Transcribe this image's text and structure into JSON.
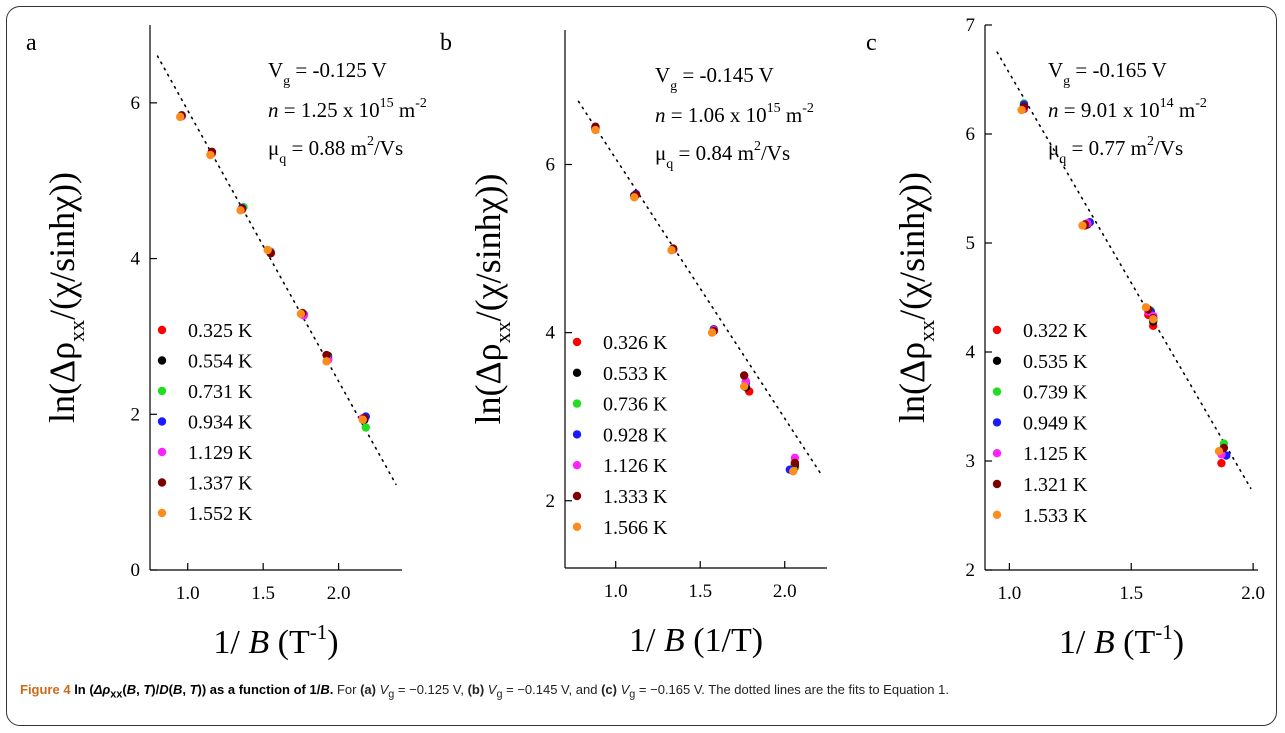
{
  "chart_data": [
    {
      "type": "scatter",
      "panel_label": "a",
      "xlabel_prefix": "1/ ",
      "xlabel_var": "B",
      "xlabel_unit": "(T",
      "xlabel_sup": "-1",
      "xlabel_close": ")",
      "ylabel": "ln(Δρ",
      "ylabel_sub": "xx",
      "ylabel_rest": "/(χ/sinhχ))",
      "xlim": [
        0.75,
        2.42
      ],
      "ylim": [
        0,
        7.0
      ],
      "xticks": [
        1.0,
        1.5,
        2.0
      ],
      "xtick_labels": [
        "1.0",
        "1.5",
        "2.0"
      ],
      "yticks": [
        0,
        2,
        4,
        6
      ],
      "ytick_labels": [
        "0",
        "2",
        "4",
        "6"
      ],
      "annotation": {
        "vg_sym": "V",
        "vg_sub": "g",
        "vg_val": " = -0.125 V",
        "n_sym": "n",
        "n_val": " = 1.25 x 10",
        "n_exp": "15",
        "n_unit": " m",
        "n_unit_exp": "-2",
        "mu_sym": "μ",
        "mu_sub": "q",
        "mu_val": " = 0.88 m",
        "mu_exp": "2",
        "mu_unit": "/Vs"
      },
      "fit": {
        "style": "dotted",
        "x": [
          0.8,
          2.38
        ],
        "y": [
          6.6,
          1.1
        ]
      },
      "series": [
        {
          "name": "0.325 K",
          "color": "#ff0000",
          "x": [
            0.96,
            1.16,
            1.36,
            1.55,
            1.76,
            1.93,
            2.17
          ],
          "y": [
            5.83,
            5.35,
            4.63,
            4.07,
            3.28,
            2.7,
            1.93
          ]
        },
        {
          "name": "0.554 K",
          "color": "#000000",
          "x": [
            0.96,
            1.16,
            1.36,
            1.55,
            1.76,
            1.93,
            2.17
          ],
          "y": [
            5.83,
            5.36,
            4.64,
            4.07,
            3.29,
            2.75,
            1.93
          ]
        },
        {
          "name": "0.731 K",
          "color": "#22dd22",
          "x": [
            0.96,
            1.16,
            1.37,
            1.55,
            1.76,
            1.93,
            2.18
          ],
          "y": [
            5.84,
            5.37,
            4.66,
            4.09,
            3.3,
            2.73,
            1.83
          ]
        },
        {
          "name": "0.934 K",
          "color": "#1a1aff",
          "x": [
            0.96,
            1.16,
            1.36,
            1.55,
            1.77,
            1.93,
            2.18
          ],
          "y": [
            5.83,
            5.37,
            4.65,
            4.08,
            3.28,
            2.72,
            1.97
          ]
        },
        {
          "name": "1.129 K",
          "color": "#ff22ff",
          "x": [
            0.96,
            1.16,
            1.36,
            1.55,
            1.77,
            1.93,
            2.16
          ],
          "y": [
            5.83,
            5.36,
            4.64,
            4.08,
            3.27,
            2.7,
            1.95
          ]
        },
        {
          "name": "1.337 K",
          "color": "#800000",
          "x": [
            0.96,
            1.16,
            1.36,
            1.55,
            1.76,
            1.92,
            2.17
          ],
          "y": [
            5.84,
            5.37,
            4.64,
            4.07,
            3.3,
            2.76,
            1.95
          ]
        },
        {
          "name": "1.552 K",
          "color": "#ff8c1a",
          "x": [
            0.95,
            1.15,
            1.35,
            1.53,
            1.75,
            1.92,
            2.16
          ],
          "y": [
            5.82,
            5.33,
            4.62,
            4.11,
            3.29,
            2.68,
            1.93
          ]
        }
      ]
    },
    {
      "type": "scatter",
      "panel_label": "b",
      "xlabel_prefix": "1/ ",
      "xlabel_var": "B",
      "xlabel_unit": "(1/T)",
      "xlabel_sup": "",
      "xlabel_close": "",
      "ylabel": "ln(Δρ",
      "ylabel_sub": "xx",
      "ylabel_rest": "/(χ/sinhχ))",
      "xlim": [
        0.7,
        2.25
      ],
      "ylim": [
        1.2,
        7.6
      ],
      "xticks": [
        1.0,
        1.5,
        2.0
      ],
      "xtick_labels": [
        "1.0",
        "1.5",
        "2.0"
      ],
      "yticks": [
        2,
        4,
        6
      ],
      "ytick_labels": [
        "2",
        "4",
        "6"
      ],
      "annotation": {
        "vg_sym": "V",
        "vg_sub": "g",
        "vg_val": " = -0.145 V",
        "n_sym": "n",
        "n_val": " = 1.06 x 10",
        "n_exp": "15",
        "n_unit": " m",
        "n_unit_exp": "-2",
        "mu_sym": "μ",
        "mu_sub": "q",
        "mu_val": " = 0.84 m",
        "mu_exp": "2",
        "mu_unit": "/Vs"
      },
      "fit": {
        "style": "dotted",
        "x": [
          0.78,
          2.22
        ],
        "y": [
          6.75,
          2.3
        ]
      },
      "series": [
        {
          "name": "0.326 K",
          "color": "#ff0000",
          "x": [
            0.88,
            1.11,
            1.34,
            1.58,
            1.79,
            2.06
          ],
          "y": [
            6.42,
            5.62,
            4.99,
            4.02,
            3.3,
            2.4
          ]
        },
        {
          "name": "0.533 K",
          "color": "#000000",
          "x": [
            0.88,
            1.11,
            1.34,
            1.58,
            1.77,
            2.06
          ],
          "y": [
            6.43,
            5.63,
            4.99,
            4.03,
            3.35,
            2.43
          ]
        },
        {
          "name": "0.736 K",
          "color": "#22dd22",
          "x": [
            0.88,
            1.12,
            1.34,
            1.58,
            1.77,
            2.05
          ],
          "y": [
            6.44,
            5.64,
            5.0,
            4.04,
            3.42,
            2.38
          ]
        },
        {
          "name": "0.928 K",
          "color": "#1a1aff",
          "x": [
            0.88,
            1.12,
            1.34,
            1.58,
            1.77,
            2.03
          ],
          "y": [
            6.43,
            5.65,
            4.99,
            4.04,
            3.4,
            2.37
          ]
        },
        {
          "name": "1.126 K",
          "color": "#ff22ff",
          "x": [
            0.88,
            1.12,
            1.34,
            1.58,
            1.77,
            2.06
          ],
          "y": [
            6.43,
            5.64,
            4.99,
            4.03,
            3.42,
            2.51
          ]
        },
        {
          "name": "1.333 K",
          "color": "#800000",
          "x": [
            0.88,
            1.12,
            1.34,
            1.58,
            1.76,
            2.06
          ],
          "y": [
            6.45,
            5.64,
            5.0,
            4.02,
            3.49,
            2.45
          ]
        },
        {
          "name": "1.566 K",
          "color": "#ff8c1a",
          "x": [
            0.88,
            1.11,
            1.33,
            1.57,
            1.76,
            2.05
          ],
          "y": [
            6.41,
            5.61,
            4.98,
            4.0,
            3.36,
            2.35
          ]
        }
      ]
    },
    {
      "type": "scatter",
      "panel_label": "c",
      "xlabel_prefix": "1/ ",
      "xlabel_var": "B",
      "xlabel_unit": "(T",
      "xlabel_sup": "-1",
      "xlabel_close": ")",
      "ylabel": "ln(Δρ",
      "ylabel_sub": "xx",
      "ylabel_rest": "/(χ/sinhχ))",
      "xlim": [
        0.9,
        2.02
      ],
      "ylim": [
        2,
        7
      ],
      "xticks": [
        1.0,
        1.5,
        2.0
      ],
      "xtick_labels": [
        "1.0",
        "1.5",
        "2.0"
      ],
      "yticks": [
        2,
        3,
        4,
        5,
        6,
        7
      ],
      "ytick_labels": [
        "2",
        "3",
        "4",
        "5",
        "6",
        "7"
      ],
      "annotation": {
        "vg_sym": "V",
        "vg_sub": "g",
        "vg_val": " = -0.165 V",
        "n_sym": "n",
        "n_val": " = 9.01 x 10",
        "n_exp": "14",
        "n_unit": " m",
        "n_unit_exp": "-2",
        "mu_sym": "μ",
        "mu_sub": "q",
        "mu_val": " = 0.77 m",
        "mu_exp": "2",
        "mu_unit": "/Vs"
      },
      "fit": {
        "style": "dotted",
        "x": [
          0.95,
          1.99
        ],
        "y": [
          6.75,
          2.75
        ]
      },
      "series": [
        {
          "name": "0.322 K",
          "color": "#ff0000",
          "x": [
            1.06,
            1.31,
            1.57,
            1.59,
            1.87
          ],
          "y": [
            6.23,
            5.16,
            4.34,
            4.24,
            2.98
          ]
        },
        {
          "name": "0.535 K",
          "color": "#000000",
          "x": [
            1.06,
            1.32,
            1.58,
            1.59,
            1.87
          ],
          "y": [
            6.26,
            5.17,
            4.36,
            4.28,
            3.08
          ]
        },
        {
          "name": "0.739 K",
          "color": "#22dd22",
          "x": [
            1.06,
            1.33,
            1.58,
            1.59,
            1.88
          ],
          "y": [
            6.28,
            5.19,
            4.38,
            4.33,
            3.16
          ]
        },
        {
          "name": "0.949 K",
          "color": "#1a1aff",
          "x": [
            1.06,
            1.33,
            1.58,
            1.59,
            1.89
          ],
          "y": [
            6.27,
            5.19,
            4.37,
            4.31,
            3.05
          ]
        },
        {
          "name": "1.125 K",
          "color": "#ff22ff",
          "x": [
            1.06,
            1.32,
            1.57,
            1.59,
            1.87
          ],
          "y": [
            6.24,
            5.18,
            4.37,
            4.33,
            3.06
          ]
        },
        {
          "name": "1.321 K",
          "color": "#800000",
          "x": [
            1.06,
            1.31,
            1.57,
            1.59,
            1.88
          ],
          "y": [
            6.25,
            5.17,
            4.39,
            4.31,
            3.12
          ]
        },
        {
          "name": "1.533 K",
          "color": "#ff8c1a",
          "x": [
            1.05,
            1.3,
            1.56,
            1.59,
            1.86
          ],
          "y": [
            6.22,
            5.16,
            4.41,
            4.3,
            3.09
          ]
        }
      ]
    }
  ],
  "caption": {
    "fig_num": "Figure 4 ",
    "title_ln": "ln (",
    "title_rho": "Δρ",
    "title_rho_sub": "xx",
    "title_args": "(",
    "title_B1": "B",
    "title_comma1": ", ",
    "title_T1": "T",
    "title_mid": ")/",
    "title_D": "D",
    "title_args2": "(",
    "title_B2": "B",
    "title_comma2": ", ",
    "title_T2": "T",
    "title_end": ")) as a function of 1/",
    "title_B3": "B",
    "title_dot": ".",
    "body_for": " For ",
    "label_a": "(a)",
    "vg1_pre": " ",
    "vg1_sym": "V",
    "vg1_sub": "g",
    "vg1_val": " = −0.125 V, ",
    "label_b": "(b)",
    "vg2_sym": "V",
    "vg2_sub": "g",
    "vg2_val": " = −0.145 V, and ",
    "label_c": "(c)",
    "vg3_sym": "V",
    "vg3_sub": "g",
    "vg3_val": " = −0.165 V. The dotted lines are the fits to Equation 1."
  }
}
